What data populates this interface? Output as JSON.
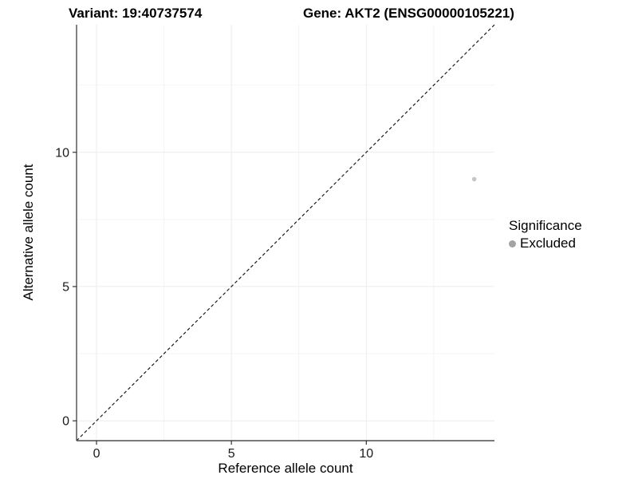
{
  "titles": {
    "left": "Variant: 19:40737574",
    "right": "Gene: AKT2 (ENSG00000105221)"
  },
  "axes": {
    "x_label": "Reference allele count",
    "y_label": "Alternative allele count"
  },
  "legend": {
    "title": "Significance",
    "items": [
      {
        "label": "Excluded",
        "color": "#a3a3a3"
      }
    ]
  },
  "chart_data": {
    "type": "scatter",
    "title": "Variant: 19:40737574   Gene: AKT2 (ENSG00000105221)",
    "xlabel": "Reference allele count",
    "ylabel": "Alternative allele count",
    "xlim": [
      -0.74,
      14.75
    ],
    "ylim": [
      -0.74,
      14.75
    ],
    "x_ticks": [
      0,
      5,
      10
    ],
    "y_ticks": [
      0,
      5,
      10
    ],
    "x_minor_ticks": [
      2.5,
      7.5,
      12.5
    ],
    "y_minor_ticks": [
      2.5,
      7.5,
      12.5
    ],
    "grid": true,
    "legend_position": "right",
    "series": [
      {
        "name": "Excluded",
        "color": "#c6c6c6",
        "points": [
          {
            "x": 14,
            "y": 9
          }
        ]
      }
    ],
    "reference_line": {
      "type": "identity",
      "style": "dashed",
      "from": [
        -0.74,
        -0.74
      ],
      "to": [
        14.75,
        14.75
      ]
    }
  },
  "colors": {
    "background": "#ffffff",
    "grid_major": "#ececec",
    "grid_minor": "#f4f4f4",
    "axis_line": "#4d4d4d",
    "tick_mark": "#333333",
    "tick_label": "#1a1a1a",
    "dashed_line": "#1a1a1a"
  }
}
